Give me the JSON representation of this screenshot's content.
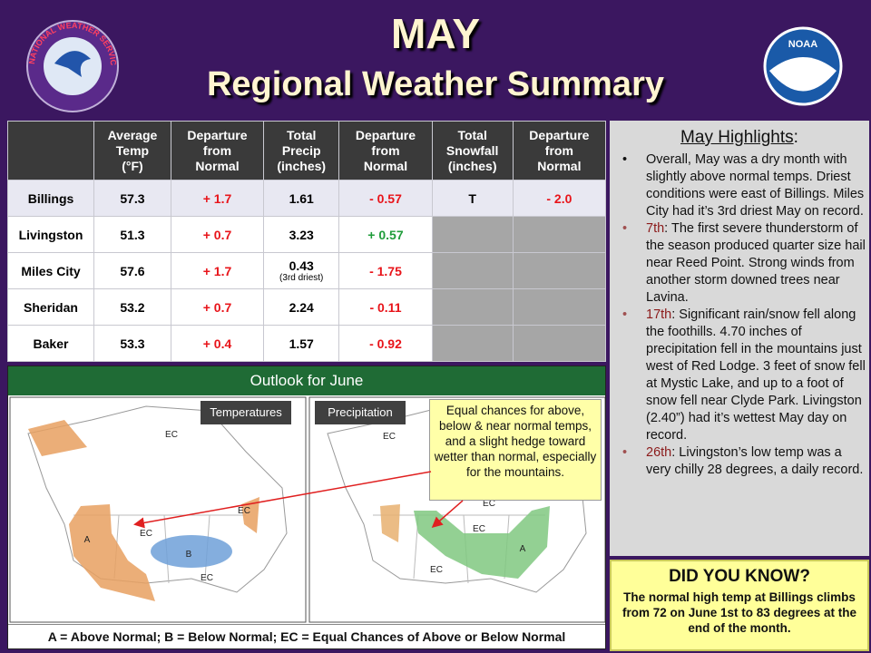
{
  "header": {
    "title": "MAY",
    "subtitle": "Regional Weather Summary",
    "logos": [
      "NATIONAL WEATHER SERVICE",
      "NOAA"
    ]
  },
  "table": {
    "columns": [
      [
        "Average",
        "Temp",
        "(°F)"
      ],
      [
        "Departure",
        "from",
        "Normal"
      ],
      [
        "Total",
        "Precip",
        "(inches)"
      ],
      [
        "Departure",
        "from",
        "Normal"
      ],
      [
        "Total",
        "Snowfall",
        "(inches)"
      ],
      [
        "Departure",
        "from",
        "Normal"
      ]
    ],
    "rows": [
      {
        "station": "Billings",
        "cells": [
          "57.3",
          "+ 1.7",
          "1.61",
          "- 0.57",
          "T",
          "- 2.0"
        ]
      },
      {
        "station": "Livingston",
        "cells": [
          "51.3",
          "+ 0.7",
          "3.23",
          "+ 0.57"
        ]
      },
      {
        "station": "Miles City",
        "cells": [
          "57.6",
          "+ 1.7",
          "0.43",
          "- 1.75"
        ],
        "precip_note": "(3rd driest)"
      },
      {
        "station": "Sheridan",
        "cells": [
          "53.2",
          "+ 0.7",
          "2.24",
          "- 0.11"
        ]
      },
      {
        "station": "Baker",
        "cells": [
          "53.3",
          "+ 0.4",
          "1.57",
          "- 0.92"
        ]
      }
    ]
  },
  "highlights": {
    "title": "May Highlights",
    "colon": ":",
    "items": [
      {
        "text": "Overall, May was a dry month with slightly above normal temps.  Driest conditions were east of Billings. Miles City had it’s 3rd driest May on record."
      },
      {
        "day": "7th",
        "text": ": The first severe thunderstorm  of the season produced quarter size hail near Reed Point. Strong winds from another storm downed trees near Lavina."
      },
      {
        "day": "17th",
        "text": ": Significant rain/snow fell along the foothills. 4.70 inches of precipitation fell in the mountains  just west of Red Lodge. 3 feet of snow fell at Mystic Lake, and up to a foot of snow fell near Clyde Park. Livingston (2.40”) had it’s wettest  May day on record."
      },
      {
        "day": "26th",
        "text": ": Livingston’s low temp was a very chilly 28 degrees, a daily record."
      }
    ]
  },
  "did_you_know": {
    "title": "DID YOU KNOW?",
    "text": "The normal high temp at Billings climbs from 72 on June 1st to 83 degrees at the end of the month."
  },
  "outlook": {
    "title": "Outlook for June",
    "maps": [
      {
        "label": "Temperatures",
        "marks": [
          "EC",
          "A",
          "EC",
          "B",
          "EC",
          "EC"
        ]
      },
      {
        "label": "Precipitation",
        "marks": [
          "EC",
          "EC",
          "EC",
          "A",
          "EC"
        ]
      }
    ],
    "callout": "Equal chances for above, below & near normal temps, and a slight hedge toward wetter than normal, especially for the mountains.",
    "legend": "A = Above Normal;  B = Below Normal;  EC = Equal Chances of Above or Below Normal"
  }
}
